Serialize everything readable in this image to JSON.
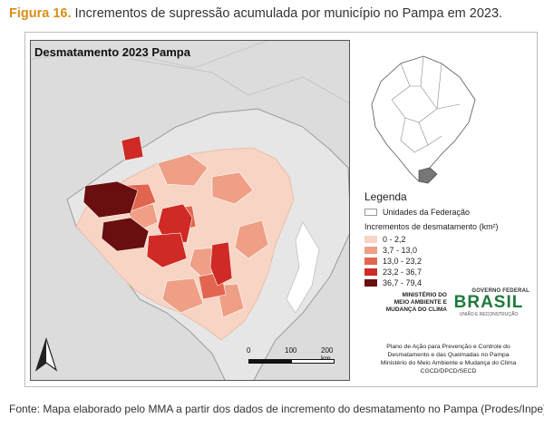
{
  "figure": {
    "label": "Figura 16.",
    "title": "Incrementos de supressão acumulada por município no Pampa em 2023."
  },
  "map": {
    "title": "Desmatamento 2023 Pampa",
    "colors": {
      "background": "#dcdcdc",
      "federation_units": "#ffffff"
    }
  },
  "legend": {
    "title": "Legenda",
    "federation_units_label": "Unidades da Federação",
    "subtitle": "Incrementos de desmatamento (km²)",
    "classes": [
      {
        "label": "0 - 2,2",
        "color": "#f7d4c4"
      },
      {
        "label": "3,7 - 13,0",
        "color": "#ee9f86"
      },
      {
        "label": "13,0 - 23,2",
        "color": "#e2664f"
      },
      {
        "label": "23,2 - 36,7",
        "color": "#cf2a25"
      },
      {
        "label": "36,7 - 79,4",
        "color": "#6a0f10"
      }
    ]
  },
  "scale_bar": {
    "ticks": [
      "0",
      "100",
      "200 km"
    ]
  },
  "north_arrow": {
    "icon": "north-arrow-icon"
  },
  "institutions": {
    "ministry_lines": [
      "MINISTÉRIO DO",
      "MEIO AMBIENTE E",
      "MUDANÇA DO CLIMA"
    ],
    "gov_label": "GOVERNO FEDERAL",
    "gov_word": "BRASIL",
    "gov_sub": "UNIÃO E RECONSTRUÇÃO"
  },
  "credits": [
    "Plano de Ação para Prevenção e Controle do",
    "Desmatamento e das Queimadas no Pampa",
    "Ministério do Meio Ambiente e Mudança do Clima",
    "CGCD/DPCD/SECD"
  ],
  "caption": "Fonte: Mapa elaborado pelo MMA a partir dos dados de incremento do desmatamento no Pampa (Prodes/Inpe)."
}
